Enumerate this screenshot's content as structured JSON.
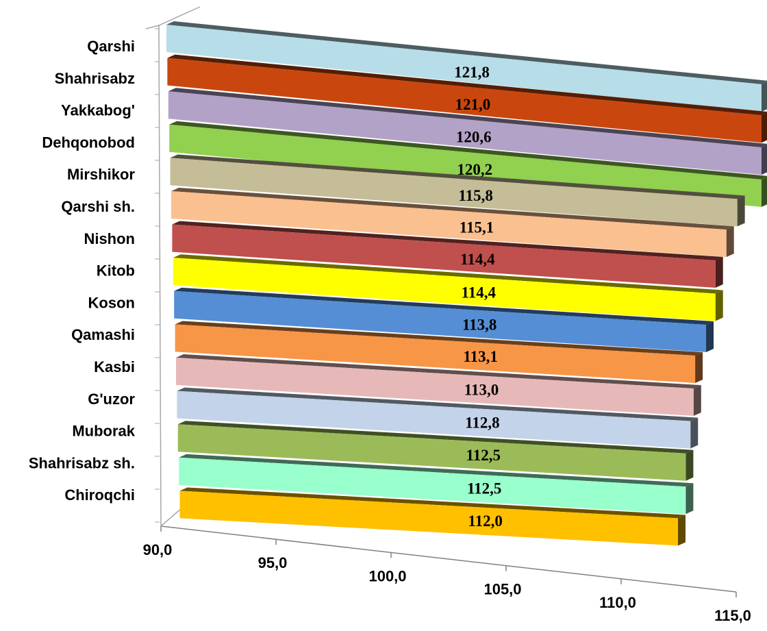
{
  "chart_data": {
    "type": "bar",
    "orientation": "horizontal",
    "style": "3d",
    "title": "",
    "xlabel": "",
    "ylabel": "",
    "xlim": [
      90,
      115
    ],
    "x_ticks": [
      "90,0",
      "95,0",
      "100,0",
      "105,0",
      "110,0",
      "115,0"
    ],
    "categories": [
      "Qarshi",
      "Shahrisabz",
      "Yakkabog'",
      "Dehqonobod",
      "Mirshikor",
      "Qarshi sh.",
      "Nishon",
      "Kitob",
      "Koson",
      "Qamashi",
      "Kasbi",
      "G'uzor",
      "Muborak",
      "Shahrisabz sh.",
      "Chiroqchi"
    ],
    "values": [
      121.8,
      121.0,
      120.6,
      120.2,
      115.8,
      115.1,
      114.4,
      114.4,
      113.8,
      113.1,
      113.0,
      112.8,
      112.5,
      112.5,
      112.0
    ],
    "value_labels": [
      "121,8",
      "121,0",
      "120,6",
      "120,2",
      "115,8",
      "115,1",
      "114,4",
      "114,4",
      "113,8",
      "113,1",
      "113,0",
      "112,8",
      "112,5",
      "112,5",
      "112,0"
    ],
    "colors": [
      "#b7dde8",
      "#c9470e",
      "#b3a2c7",
      "#92d050",
      "#c4bd97",
      "#fac090",
      "#c0504d",
      "#ffff00",
      "#558ed5",
      "#f79646",
      "#e6b9b8",
      "#c3d3e9",
      "#9bbb59",
      "#99ffcc",
      "#ffc000"
    ],
    "grid": false,
    "legend": "none"
  }
}
